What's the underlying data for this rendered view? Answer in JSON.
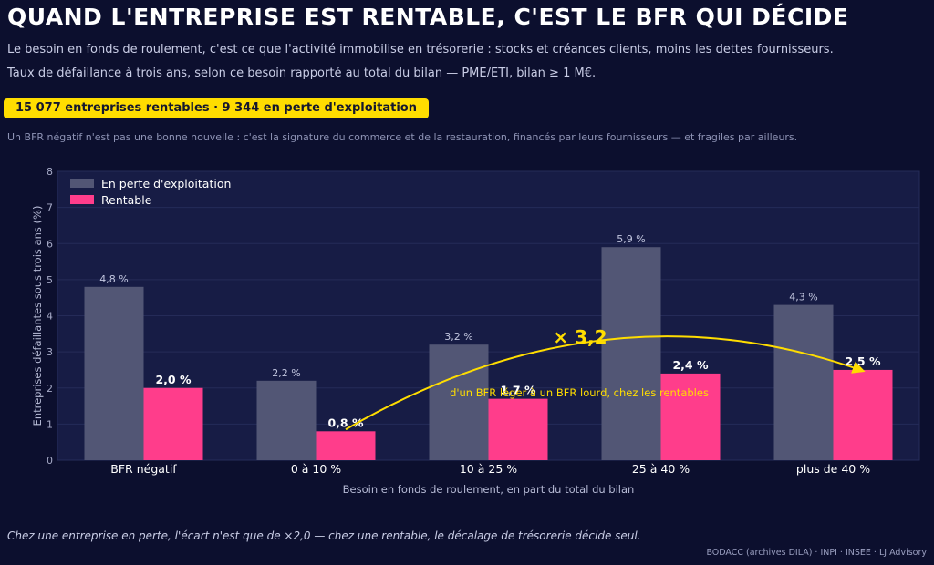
{
  "header": {
    "title": "QUAND L'ENTREPRISE EST RENTABLE, C'EST LE BFR QUI DÉCIDE",
    "subtitle1": "Le besoin en fonds de roulement, c'est ce que l'activité immobilise en trésorerie : stocks et créances clients, moins les dettes fournisseurs.",
    "subtitle2": "Taux de défaillance à trois ans, selon ce besoin rapporté au total du bilan — PME/ETI, bilan ≥ 1 M€.",
    "badge": "15 077 entreprises rentables  ·  9 344 en perte d'exploitation",
    "note": "Un BFR négatif n'est pas une bonne nouvelle : c'est la signature du commerce et de la restauration, financés par leurs fournisseurs — et fragiles par ailleurs."
  },
  "footer": {
    "caption": "Chez une entreprise en perte, l'écart n'est que de ×2,0 — chez une rentable, le décalage de trésorerie décide seul.",
    "source": "BODACC (archives DILA) · INPI · INSEE  ·  LJ Advisory"
  },
  "colors": {
    "background": "#0c0f2e",
    "plot_bg": "#171c45",
    "loss": "#525675",
    "profitable": "#ff3d8b",
    "accent": "#ffdd00"
  },
  "chart_data": {
    "type": "bar",
    "categories": [
      "BFR négatif",
      "0 à 10 %",
      "10 à 25 %",
      "25 à 40 %",
      "plus de 40 %"
    ],
    "series": [
      {
        "name": "En perte d'exploitation",
        "values": [
          4.8,
          2.2,
          3.2,
          5.9,
          4.3
        ],
        "labels": [
          "4,8 %",
          "2,2 %",
          "3,2 %",
          "5,9 %",
          "4,3 %"
        ]
      },
      {
        "name": "Rentable",
        "values": [
          2.0,
          0.8,
          1.7,
          2.4,
          2.5
        ],
        "labels": [
          "2,0 %",
          "0,8 %",
          "1,7 %",
          "2,4 %",
          "2,5 %"
        ]
      }
    ],
    "yticks": [
      "0",
      "1",
      "2",
      "3",
      "4",
      "5",
      "6",
      "7",
      "8"
    ],
    "xlabel": "Besoin en fonds de roulement, en part du total du bilan",
    "ylabel": "Entreprises défaillantes sous trois ans (%)",
    "ylim": [
      0,
      8
    ],
    "grid": true,
    "legend_position": "top-left",
    "annotation": {
      "big": "× 3,2",
      "small": "d'un BFR léger à un BFR lourd, chez les rentables",
      "from_category": "0 à 10 %",
      "to_category": "plus de 40 %",
      "series": "Rentable"
    }
  }
}
